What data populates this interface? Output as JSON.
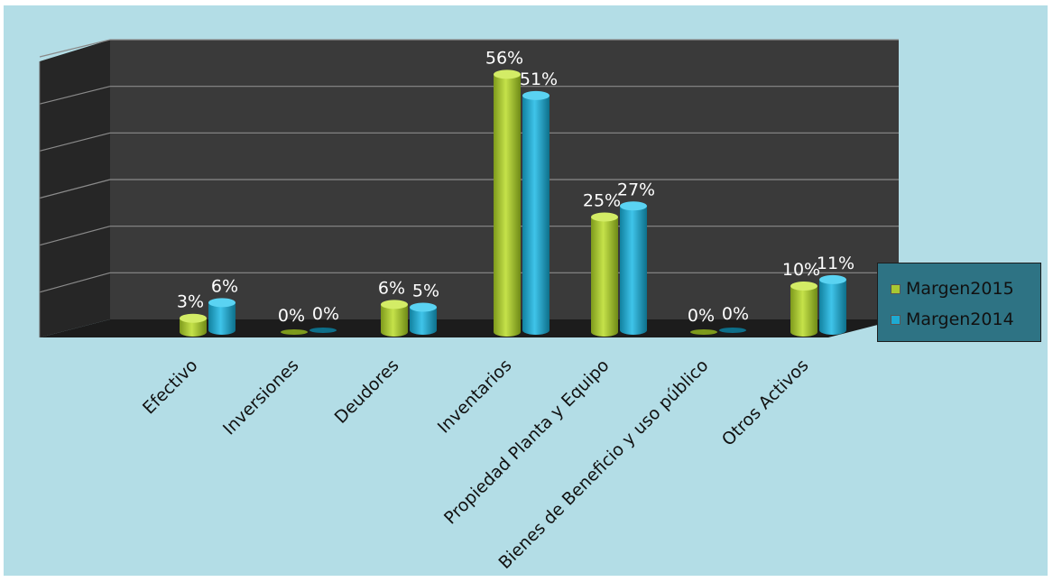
{
  "chart_data": {
    "type": "bar",
    "style": "3d-cylinder",
    "title": "",
    "xlabel": "",
    "ylabel": "",
    "ylim": [
      0,
      60
    ],
    "grid": true,
    "legend_position": "right",
    "categories": [
      "Efectivo",
      "Inversiones",
      "Deudores",
      "Inventarios",
      "Propiedad Planta y Equipo",
      "Bienes de Beneficio y uso público",
      "Otros Activos"
    ],
    "series": [
      {
        "name": "Margen2015",
        "color": "#a8c832",
        "values": [
          3,
          0,
          6,
          56,
          25,
          0,
          10
        ],
        "labels": [
          "3%",
          "0%",
          "6%",
          "56%",
          "25%",
          "0%",
          "10%"
        ]
      },
      {
        "name": "Margen2014",
        "color": "#1eaad2",
        "values": [
          6,
          0,
          5,
          51,
          27,
          0,
          11
        ],
        "labels": [
          "6%",
          "0%",
          "5%",
          "51%",
          "27%",
          "0%",
          "11%"
        ]
      }
    ],
    "background_color": "#b3dde6",
    "plot_background_color": "#3a3a3a"
  }
}
